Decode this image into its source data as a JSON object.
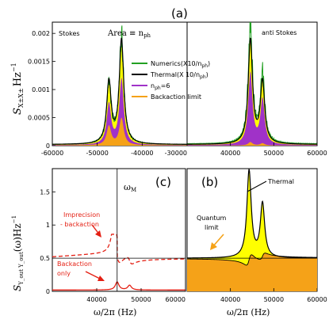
{
  "panel_labels": {
    "a": "(a)",
    "b": "(b)",
    "c": "(c)"
  },
  "chart_data": [
    {
      "id": "a-left",
      "type": "area",
      "title": "Stokes",
      "annotation": "Area ≡ n",
      "annotation_sub": "ph",
      "ylabel": "S",
      "ylabel_sub": "X±X±",
      "ylabel_unit": "Hz",
      "ylabel_exp": "−1",
      "xlim": [
        -60000,
        -30000
      ],
      "ylim": [
        0,
        0.0022
      ],
      "x_ticks": [
        -60000,
        -50000,
        -40000,
        -30000
      ],
      "x_tick_labels": [
        "-60000",
        "-50000",
        "-40000",
        "-30000"
      ],
      "y_ticks": [
        0,
        0.0005,
        0.001,
        0.0015,
        0.002
      ],
      "y_tick_labels": [
        "0",
        "0.0005",
        "0.001",
        "0.0015",
        "0.002"
      ],
      "peaks": [
        {
          "center": -47400,
          "width": 600
        },
        {
          "center": -44600,
          "width": 600
        }
      ],
      "series": [
        {
          "name": "Numerics(X10/n_ph)",
          "role": "numerics",
          "color": "#22a022",
          "peaks": [
            0.00108,
            0.00186
          ],
          "floor": 2e-05
        },
        {
          "name": "Thermal(X 10/n_ph)",
          "role": "thermal",
          "color": "#000000",
          "peaks": [
            0.0011,
            0.00185
          ],
          "floor": 2e-05
        },
        {
          "name": "n_ph=6",
          "role": "nph",
          "color": "#a032c8",
          "peaks": [
            0.00072,
            0.00117
          ],
          "floor": 1e-05
        },
        {
          "name": "Backaction limit",
          "role": "backaction",
          "color": "#f5a218",
          "peaks": [
            0.00034,
            0.00048
          ],
          "floor": 5e-06
        }
      ],
      "legend": [
        {
          "label": "Numerics(X10/n",
          "sub": "ph",
          "tail": ")",
          "color": "#22a022"
        },
        {
          "label": "Thermal(X 10/n",
          "sub": "ph",
          "tail": ")",
          "color": "#000000"
        },
        {
          "label": "n",
          "sub": "ph",
          "tail": "=6",
          "color": "#a032c8"
        },
        {
          "label": "Backaction limit",
          "sub": "",
          "tail": "",
          "color": "#f5a218"
        }
      ]
    },
    {
      "id": "a-right",
      "type": "area",
      "title": "anti Stokes",
      "xlim": [
        30000,
        60000
      ],
      "ylim": [
        0,
        0.0022
      ],
      "x_ticks": [
        40000,
        50000,
        60000
      ],
      "x_tick_labels": [
        "40000",
        "50000",
        "60000"
      ],
      "peaks": [
        {
          "center": 44600,
          "width": 600
        },
        {
          "center": 47400,
          "width": 600
        }
      ],
      "series": [
        {
          "name": "Numerics",
          "role": "numerics",
          "color": "#22a022",
          "peaks": [
            0.00205,
            0.00122
          ],
          "floor": 3e-05
        },
        {
          "name": "Thermal",
          "role": "thermal",
          "color": "#000000",
          "peaks": [
            0.00185,
            0.0011
          ],
          "floor": 2e-05
        },
        {
          "name": "n_ph=6",
          "role": "nph",
          "color": "#a032c8",
          "peaks": [
            0.00128,
            0.0008
          ],
          "floor": 1e-05
        },
        {
          "name": "Backaction limit",
          "role": "backaction",
          "color": "#f5a218",
          "peaks": [
            6e-05,
            4e-05
          ],
          "floor": 3e-06
        }
      ]
    },
    {
      "id": "c",
      "type": "line",
      "annotation": "ω",
      "annotation_sub": "M",
      "ylabel": "S",
      "ylabel_sub": "Y_out Y_out",
      "ylabel_func": "(ω)Hz",
      "ylabel_exp": "−1",
      "xlabel": "ω/2π (Hz)",
      "xlim": [
        30000,
        60000
      ],
      "ylim": [
        0,
        1.85
      ],
      "vline": 44600,
      "hline": 0.5,
      "x_ticks": [
        40000,
        50000,
        60000
      ],
      "x_tick_labels": [
        "40000",
        "50000",
        "60000"
      ],
      "y_ticks": [
        0,
        0.5,
        1,
        1.5
      ],
      "y_tick_labels": [
        "0",
        "0.5",
        "1",
        "1.5"
      ],
      "series": [
        {
          "name": "Imprecision + backaction",
          "role": "imprecision",
          "color": "#e41f13"
        },
        {
          "name": "Backaction only",
          "role": "backaction",
          "color": "#e41f13"
        }
      ],
      "annotations": [
        {
          "text": "Imprecision",
          "line": 1
        },
        {
          "text": "- backaction",
          "line": 2
        },
        {
          "text": "Backaction",
          "line": 3
        },
        {
          "text": "only",
          "line": 4
        }
      ]
    },
    {
      "id": "b",
      "type": "area",
      "xlabel": "ω/2π (Hz)",
      "xlim": [
        30000,
        60000
      ],
      "ylim": [
        0,
        1.85
      ],
      "hline": 0.5,
      "x_ticks": [
        40000,
        50000,
        60000
      ],
      "x_tick_labels": [
        "40000",
        "50000",
        "60000"
      ],
      "peaks": [
        {
          "center": 44300,
          "width": 600,
          "height": 1.31
        },
        {
          "center": 47400,
          "width": 600,
          "height": 0.81
        }
      ],
      "series": [
        {
          "name": "Thermal",
          "role": "thermal",
          "color": "#000000"
        },
        {
          "name": "Quantum limit",
          "role": "quantum",
          "color": "#f5a218"
        }
      ],
      "annotations": [
        {
          "text": "Thermal"
        },
        {
          "text": "Quantum"
        },
        {
          "text": "limit"
        }
      ]
    }
  ]
}
